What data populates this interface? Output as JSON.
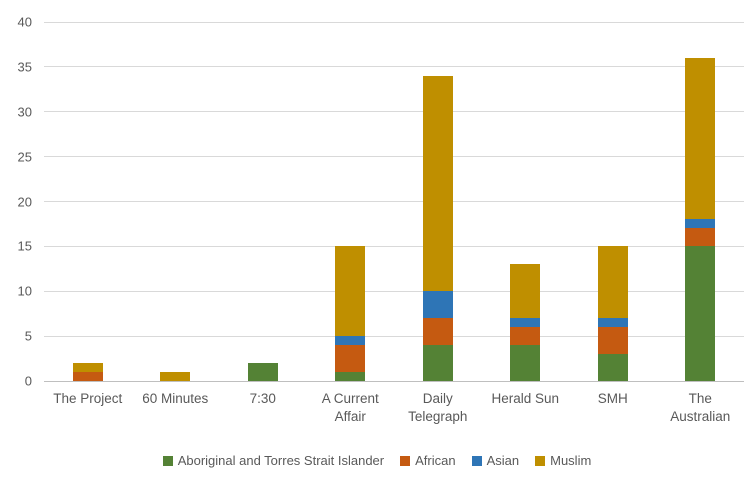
{
  "chart_data": {
    "type": "bar",
    "stacked": true,
    "title": "",
    "xlabel": "",
    "ylabel": "",
    "ylim": [
      0,
      40
    ],
    "ytick_step": 5,
    "grid": true,
    "legend_position": "bottom",
    "categories": [
      "The Project",
      "60 Minutes",
      "7:30",
      "A Current Affair",
      "Daily Telegraph",
      "Herald Sun",
      "SMH",
      "The Australian"
    ],
    "series": [
      {
        "name": "Aboriginal and Torres Strait Islander",
        "color": "#548235",
        "values": [
          0,
          0,
          2,
          1,
          4,
          4,
          3,
          15
        ]
      },
      {
        "name": "African",
        "color": "#C55A11",
        "values": [
          1,
          0,
          0,
          3,
          3,
          2,
          3,
          2
        ]
      },
      {
        "name": "Asian",
        "color": "#2E75B6",
        "values": [
          0,
          0,
          0,
          1,
          3,
          1,
          1,
          1
        ]
      },
      {
        "name": "Muslim",
        "color": "#BF8F00",
        "values": [
          1,
          1,
          0,
          10,
          24,
          6,
          8,
          18
        ]
      }
    ],
    "colors": {
      "gridline": "#d9d9d9",
      "axis_line": "#bfbfbf",
      "tick_text": "#595959",
      "background": "#ffffff"
    }
  }
}
